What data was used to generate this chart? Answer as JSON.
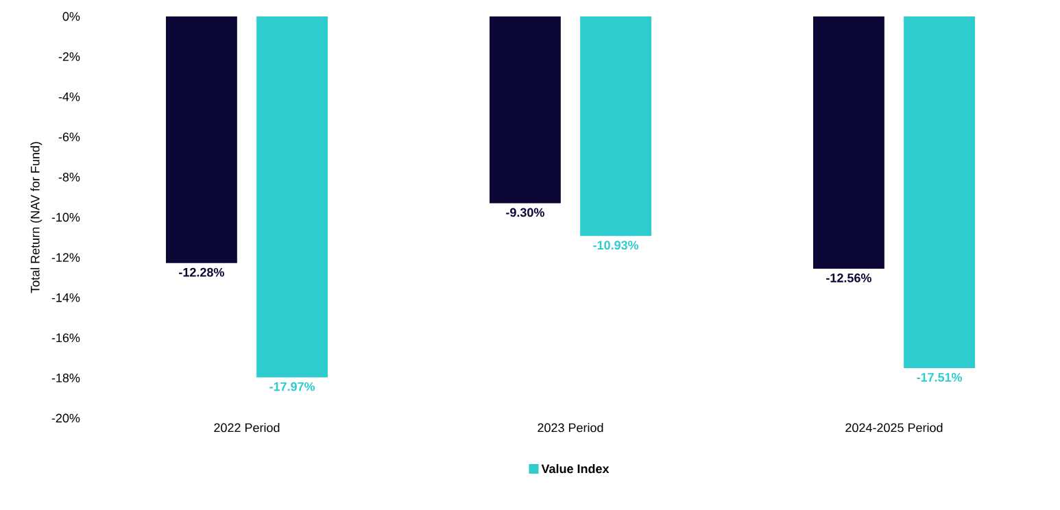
{
  "chart_data": {
    "type": "bar",
    "ylabel": "Total Return (NAV for Fund)",
    "categories": [
      "2022 Period",
      "2023 Period",
      "2024-2025 Period"
    ],
    "series": [
      {
        "color": "#0b0836",
        "values": [
          -12.28,
          -9.3,
          -12.56
        ],
        "value_labels": [
          "-12.28%",
          "-9.30%",
          "-12.56%"
        ]
      },
      {
        "name": "Value Index",
        "color": "#2ecbcf",
        "values": [
          -17.97,
          -10.93,
          -17.51
        ],
        "value_labels": [
          "-17.97%",
          "-10.93%",
          "-17.51%"
        ]
      }
    ],
    "ylim": [
      -20,
      0
    ],
    "yticks": [
      {
        "value": -20,
        "label": "-20%"
      },
      {
        "value": -18,
        "label": "-18%"
      },
      {
        "value": -16,
        "label": "-16%"
      },
      {
        "value": -14,
        "label": "-14%"
      },
      {
        "value": -12,
        "label": "-12%"
      },
      {
        "value": -10,
        "label": "-10%"
      },
      {
        "value": -8,
        "label": "-8%"
      },
      {
        "value": -6,
        "label": "-6%"
      },
      {
        "value": -4,
        "label": "-4%"
      },
      {
        "value": -2,
        "label": "-2%"
      },
      {
        "value": 0,
        "label": "0%"
      }
    ],
    "grid": false,
    "legend": "bottom"
  }
}
